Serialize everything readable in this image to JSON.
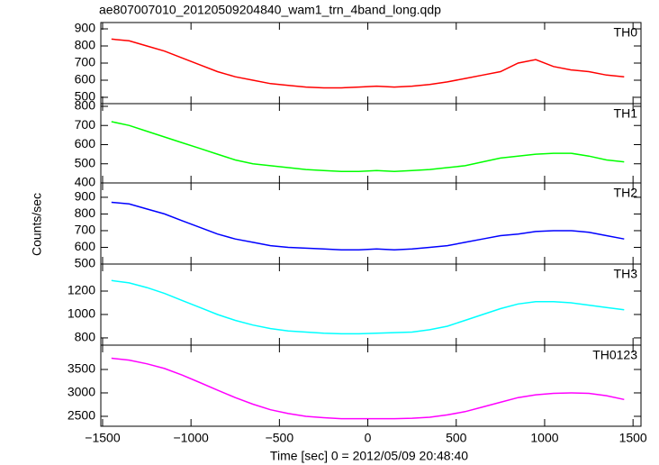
{
  "title": "ae807007010_20120509204840_wam1_trn_4band_long.qdp",
  "xlabel": "Time [sec] 0 = 2012/05/09 20:48:40",
  "ylabel": "Counts/sec",
  "xlim": [
    -1510,
    1545
  ],
  "xticks": [
    {
      "value": -1500,
      "label": "−1500"
    },
    {
      "value": -1000,
      "label": "−1000"
    },
    {
      "value": -500,
      "label": "−500"
    },
    0,
    500,
    1000,
    1500
  ],
  "chart_data": [
    {
      "type": "line",
      "label": "TH0",
      "ylim": [
        463,
        937
      ],
      "yticks": [
        500,
        600,
        700,
        800,
        900
      ],
      "x": [
        -1450,
        -1350,
        -1250,
        -1150,
        -1050,
        -950,
        -850,
        -750,
        -650,
        -550,
        -450,
        -350,
        -250,
        -150,
        -50,
        50,
        150,
        250,
        350,
        450,
        550,
        650,
        750,
        850,
        950,
        1050,
        1150,
        1250,
        1350,
        1450
      ],
      "series": [
        {
          "color": "#ff0000",
          "values": [
            840,
            830,
            800,
            770,
            730,
            690,
            650,
            620,
            600,
            580,
            570,
            560,
            555,
            555,
            560,
            565,
            560,
            565,
            575,
            590,
            610,
            630,
            650,
            700,
            720,
            680,
            660,
            650,
            630,
            620
          ]
        }
      ]
    },
    {
      "type": "line",
      "label": "TH1",
      "ylim": [
        400,
        814
      ],
      "yticks": [
        400,
        500,
        600,
        700,
        800
      ],
      "x": [
        -1450,
        -1350,
        -1250,
        -1150,
        -1050,
        -950,
        -850,
        -750,
        -650,
        -550,
        -450,
        -350,
        -250,
        -150,
        -50,
        50,
        150,
        250,
        350,
        450,
        550,
        650,
        750,
        850,
        950,
        1050,
        1150,
        1250,
        1350,
        1450
      ],
      "series": [
        {
          "color": "#00ff00",
          "values": [
            720,
            700,
            670,
            640,
            610,
            580,
            550,
            520,
            500,
            490,
            480,
            470,
            465,
            460,
            460,
            465,
            460,
            465,
            470,
            480,
            490,
            510,
            530,
            540,
            550,
            555,
            555,
            540,
            520,
            510
          ]
        }
      ]
    },
    {
      "type": "line",
      "label": "TH2",
      "ylim": [
        500,
        986
      ],
      "yticks": [
        500,
        600,
        700,
        800,
        900
      ],
      "x": [
        -1450,
        -1350,
        -1250,
        -1150,
        -1050,
        -950,
        -850,
        -750,
        -650,
        -550,
        -450,
        -350,
        -250,
        -150,
        -50,
        50,
        150,
        250,
        350,
        450,
        550,
        650,
        750,
        850,
        950,
        1050,
        1150,
        1250,
        1350,
        1450
      ],
      "series": [
        {
          "color": "#0000ff",
          "values": [
            870,
            860,
            830,
            800,
            760,
            720,
            680,
            650,
            630,
            610,
            600,
            595,
            590,
            585,
            585,
            590,
            585,
            590,
            600,
            610,
            630,
            650,
            670,
            680,
            695,
            700,
            700,
            690,
            670,
            650
          ]
        }
      ]
    },
    {
      "type": "line",
      "label": "TH3",
      "ylim": [
        738,
        1431
      ],
      "yticks": [
        800,
        1000,
        1200
      ],
      "x": [
        -1450,
        -1350,
        -1250,
        -1150,
        -1050,
        -950,
        -850,
        -750,
        -650,
        -550,
        -450,
        -350,
        -250,
        -150,
        -50,
        50,
        150,
        250,
        350,
        450,
        550,
        650,
        750,
        850,
        950,
        1050,
        1150,
        1250,
        1350,
        1450
      ],
      "series": [
        {
          "color": "#00ffff",
          "values": [
            1290,
            1270,
            1230,
            1180,
            1120,
            1060,
            1000,
            950,
            910,
            880,
            860,
            850,
            840,
            835,
            835,
            840,
            845,
            850,
            870,
            900,
            950,
            1000,
            1050,
            1090,
            1110,
            1110,
            1100,
            1080,
            1060,
            1040
          ]
        }
      ]
    },
    {
      "type": "line",
      "label": "TH0123",
      "ylim": [
        2288,
        4019
      ],
      "yticks": [
        2500,
        3000,
        3500
      ],
      "x": [
        -1450,
        -1350,
        -1250,
        -1150,
        -1050,
        -950,
        -850,
        -750,
        -650,
        -550,
        -450,
        -350,
        -250,
        -150,
        -50,
        50,
        150,
        250,
        350,
        450,
        550,
        650,
        750,
        850,
        950,
        1050,
        1150,
        1250,
        1350,
        1450
      ],
      "series": [
        {
          "color": "#ff00ff",
          "values": [
            3740,
            3700,
            3620,
            3520,
            3380,
            3220,
            3060,
            2900,
            2760,
            2640,
            2560,
            2500,
            2470,
            2450,
            2450,
            2450,
            2450,
            2460,
            2480,
            2530,
            2600,
            2700,
            2800,
            2900,
            2960,
            2990,
            3000,
            2990,
            2940,
            2860
          ]
        }
      ]
    }
  ]
}
